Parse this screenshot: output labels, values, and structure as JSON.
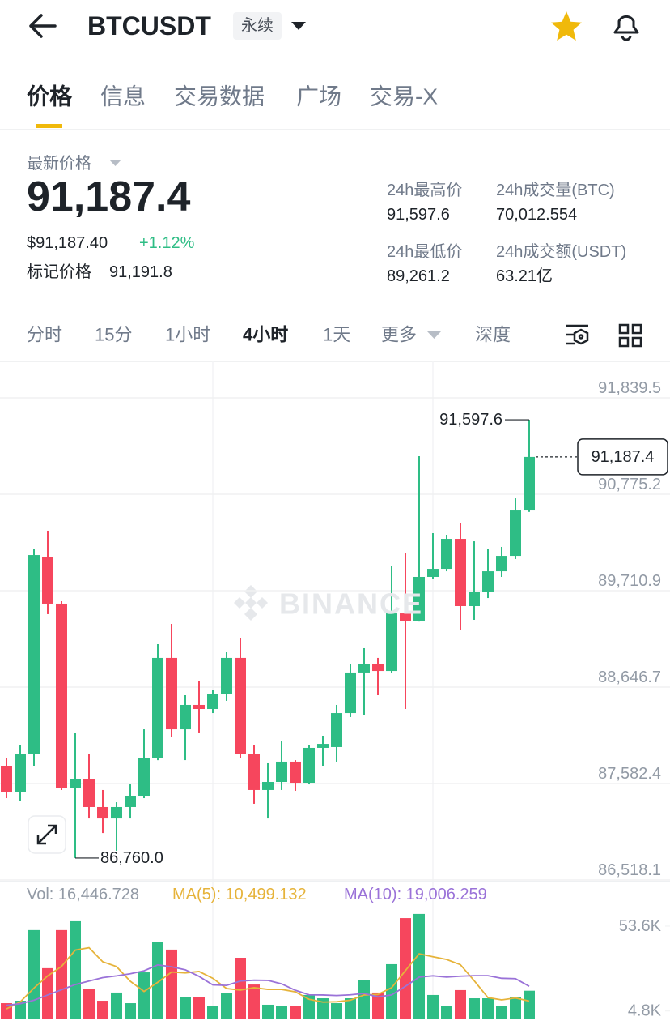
{
  "header": {
    "symbol": "BTCUSDT",
    "contract": "永续"
  },
  "tabs": [
    "价格",
    "信息",
    "交易数据",
    "广场",
    "交易-X"
  ],
  "price": {
    "title": "最新价格",
    "last": "91,187.4",
    "usd": "$91,187.40",
    "change": "+1.12%",
    "mark_label": "标记价格",
    "mark": "91,191.8"
  },
  "stats": [
    {
      "label": "24h最高价",
      "value": "91,597.6"
    },
    {
      "label": "24h成交量(BTC)",
      "value": "70,012.554"
    },
    {
      "label": "24h最低价",
      "value": "89,261.2"
    },
    {
      "label": "24h成交额(USDT)",
      "value": "63.21亿"
    }
  ],
  "intervals": [
    "分时",
    "15分",
    "1小时",
    "4小时",
    "1天",
    "更多",
    "深度"
  ],
  "watermark": "BINANCE",
  "chart_data": [
    {
      "type": "candlestick",
      "categories": [
        null,
        null,
        null,
        null,
        null,
        null,
        null,
        null,
        null,
        null,
        null,
        null,
        null,
        null,
        null,
        null,
        null,
        null,
        null,
        null,
        null,
        null,
        null,
        null,
        null,
        null,
        null,
        null,
        null,
        null,
        null,
        null,
        null,
        null,
        null,
        null,
        null,
        null,
        null
      ],
      "open": [
        87779,
        87484,
        87913,
        90086,
        89568,
        87529,
        87627,
        87323,
        87197,
        87323,
        87448,
        87868,
        88969,
        88181,
        88450,
        88405,
        88566,
        88969,
        87913,
        87511,
        87600,
        87824,
        87591,
        87976,
        87985,
        88360,
        88808,
        88897,
        88825,
        89460,
        89380,
        89863,
        89952,
        90283,
        89541,
        89702,
        89925,
        90095,
        90596
      ],
      "high": [
        87868,
        88003,
        90167,
        90373,
        89595,
        88137,
        87913,
        87511,
        87376,
        87573,
        88181,
        89121,
        89344,
        88557,
        88718,
        88611,
        89031,
        89183,
        88003,
        87806,
        88047,
        87841,
        88003,
        88110,
        88450,
        88897,
        89076,
        88969,
        89988,
        90122,
        91196,
        90346,
        90328,
        90462,
        90256,
        90167,
        90194,
        90730,
        91597.6
      ],
      "low": [
        87421,
        87394,
        87779,
        89452,
        87511,
        86760,
        87197,
        87036,
        86840,
        87197,
        87421,
        87841,
        88092,
        87841,
        88137,
        88360,
        88495,
        87868,
        87359,
        87197,
        87511,
        87502,
        87573,
        87779,
        87824,
        88316,
        88342,
        88557,
        88808,
        88405,
        89370,
        89836,
        89925,
        89273,
        89389,
        89630,
        89863,
        90060,
        90580
      ],
      "close": [
        87484,
        87913,
        90104,
        89568,
        87529,
        87627,
        87323,
        87197,
        87323,
        87448,
        87868,
        88969,
        88181,
        88450,
        88405,
        88566,
        88969,
        87913,
        87511,
        87600,
        87824,
        87591,
        87976,
        88020,
        88360,
        88808,
        88897,
        88825,
        89460,
        89380,
        89863,
        89952,
        90283,
        89541,
        89702,
        89925,
        90095,
        90596,
        91187.4
      ],
      "up_color": "#2ebd85",
      "down_color": "#f6465d",
      "ylim": [
        86500,
        92206.2
      ],
      "yticks": [
        {
          "value": 91839.5,
          "label": "91,839.5"
        },
        {
          "value": 90775.2,
          "label": "90,775.2"
        },
        {
          "value": 89710.9,
          "label": "89,710.9"
        },
        {
          "value": 88646.7,
          "label": "88,646.7"
        },
        {
          "value": 87582.4,
          "label": "87,582.4"
        },
        {
          "value": 86518.1,
          "label": "86,518.1"
        }
      ],
      "grid": true,
      "last_price": {
        "value": 91187.4,
        "label": "91,187.4"
      },
      "high_marker": {
        "value": 91597.6,
        "label": "91,597.6"
      },
      "low_marker": {
        "value": 86760,
        "label": "86,760.0"
      }
    },
    {
      "type": "bar",
      "legend_labels": [
        "Vol: 16,446.728",
        "MA(5): 10,499.132",
        "MA(10): 19,006.259"
      ],
      "series": [
        {
          "type": "bar",
          "values": [
            9300,
            10700,
            51300,
            29400,
            51300,
            56400,
            17700,
            10700,
            15400,
            9300,
            27000,
            44300,
            40100,
            13000,
            13000,
            7500,
            14900,
            35400,
            20000,
            8400,
            7500,
            7500,
            14000,
            12100,
            9300,
            12100,
            22400,
            15400,
            31700,
            58200,
            60600,
            14000,
            7500,
            16800,
            12100,
            12100,
            7500,
            13000,
            16446.728
          ]
        },
        {
          "type": "line",
          "color": "#e6b33a",
          "values": [
            6000,
            10000,
            18000,
            25000,
            30400,
            39800,
            41200,
            33100,
            30300,
            21900,
            16000,
            21300,
            27200,
            26700,
            27500,
            23600,
            17700,
            16800,
            18200,
            17200,
            17200,
            15800,
            11500,
            9900,
            10100,
            11000,
            14000,
            14300,
            18200,
            28000,
            37700,
            36000,
            34400,
            31400,
            22200,
            12500,
            11200,
            12300,
            10499.132
          ]
        },
        {
          "type": "line",
          "color": "#9a72d8",
          "values": [
            8000,
            9000,
            11000,
            14000,
            17000,
            20000,
            22000,
            24000,
            25000,
            26200,
            27900,
            31300,
            30200,
            28500,
            24700,
            19800,
            19500,
            22000,
            22500,
            22400,
            20400,
            16700,
            14100,
            14000,
            13700,
            14100,
            14900,
            12900,
            14000,
            19000,
            24300,
            25000,
            24300,
            24800,
            25100,
            25100,
            23600,
            23400,
            19006.259
          ]
        }
      ],
      "ylim": [
        0,
        73600
      ],
      "yticks": [
        {
          "value": 53600,
          "label": "53.6K"
        },
        {
          "value": 4800,
          "label": "4.8K"
        }
      ]
    }
  ]
}
